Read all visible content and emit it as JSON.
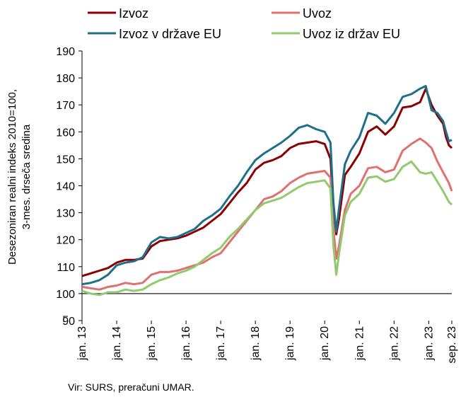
{
  "chart_data": {
    "type": "line",
    "ylabel_line1": "Desezoniran realni indeks 2010=100,",
    "ylabel_line2": "3-mes. drseča sredina",
    "ylim": [
      90,
      190
    ],
    "yticks": [
      90,
      100,
      110,
      120,
      130,
      140,
      150,
      160,
      170,
      180,
      190
    ],
    "reference_line": 100,
    "x_start": "2013-01",
    "x_end": "2023-09",
    "xtick_labels": [
      "jan. 13",
      "jan. 14",
      "jan. 15",
      "jan. 16",
      "jan. 17",
      "jan. 18",
      "jan. 19",
      "jan. 20",
      "jan. 21",
      "jan. 22",
      "jan. 23",
      "sep. 23"
    ],
    "legend_position": "top",
    "source": "Vir: SURS, preračuni UMAR.",
    "series": [
      {
        "name": "Izvoz",
        "color": "#8b0000",
        "points": [
          [
            "2013-01",
            106.5
          ],
          [
            "2013-04",
            107.5
          ],
          [
            "2013-07",
            108.5
          ],
          [
            "2013-10",
            109.5
          ],
          [
            "2014-01",
            111.5
          ],
          [
            "2014-04",
            112.5
          ],
          [
            "2014-07",
            112.5
          ],
          [
            "2014-10",
            113.0
          ],
          [
            "2015-01",
            117.5
          ],
          [
            "2015-04",
            119.5
          ],
          [
            "2015-07",
            120.0
          ],
          [
            "2015-10",
            120.5
          ],
          [
            "2016-01",
            121.5
          ],
          [
            "2016-04",
            123.0
          ],
          [
            "2016-07",
            124.5
          ],
          [
            "2016-10",
            127.0
          ],
          [
            "2017-01",
            129.5
          ],
          [
            "2017-04",
            133.5
          ],
          [
            "2017-07",
            137.5
          ],
          [
            "2017-10",
            141.0
          ],
          [
            "2018-01",
            146.0
          ],
          [
            "2018-04",
            148.5
          ],
          [
            "2018-07",
            149.5
          ],
          [
            "2018-10",
            151.0
          ],
          [
            "2019-01",
            154.0
          ],
          [
            "2019-04",
            155.5
          ],
          [
            "2019-07",
            156.0
          ],
          [
            "2019-10",
            156.5
          ],
          [
            "2020-01",
            155.5
          ],
          [
            "2020-03",
            150.0
          ],
          [
            "2020-04",
            132.0
          ],
          [
            "2020-05",
            122.0
          ],
          [
            "2020-06",
            128.0
          ],
          [
            "2020-08",
            144.0
          ],
          [
            "2020-10",
            147.0
          ],
          [
            "2021-01",
            152.0
          ],
          [
            "2021-04",
            160.0
          ],
          [
            "2021-07",
            162.0
          ],
          [
            "2021-10",
            159.0
          ],
          [
            "2022-01",
            162.0
          ],
          [
            "2022-04",
            169.0
          ],
          [
            "2022-07",
            169.5
          ],
          [
            "2022-10",
            171.0
          ],
          [
            "2022-12",
            176.0
          ],
          [
            "2023-02",
            170.0
          ],
          [
            "2023-04",
            166.0
          ],
          [
            "2023-06",
            163.0
          ],
          [
            "2023-07",
            158.0
          ],
          [
            "2023-08",
            155.0
          ],
          [
            "2023-09",
            154.0
          ]
        ]
      },
      {
        "name": "Uvoz",
        "color": "#e07070",
        "points": [
          [
            "2013-01",
            102.5
          ],
          [
            "2013-04",
            102.0
          ],
          [
            "2013-07",
            101.5
          ],
          [
            "2013-10",
            102.5
          ],
          [
            "2014-01",
            103.0
          ],
          [
            "2014-04",
            104.0
          ],
          [
            "2014-07",
            103.5
          ],
          [
            "2014-10",
            104.0
          ],
          [
            "2015-01",
            107.0
          ],
          [
            "2015-04",
            108.0
          ],
          [
            "2015-07",
            108.0
          ],
          [
            "2015-10",
            108.5
          ],
          [
            "2016-01",
            109.5
          ],
          [
            "2016-04",
            110.5
          ],
          [
            "2016-07",
            111.5
          ],
          [
            "2016-10",
            113.5
          ],
          [
            "2017-01",
            115.0
          ],
          [
            "2017-04",
            119.0
          ],
          [
            "2017-07",
            123.0
          ],
          [
            "2017-10",
            127.0
          ],
          [
            "2018-01",
            131.0
          ],
          [
            "2018-04",
            135.0
          ],
          [
            "2018-07",
            136.0
          ],
          [
            "2018-10",
            138.0
          ],
          [
            "2019-01",
            141.0
          ],
          [
            "2019-04",
            143.0
          ],
          [
            "2019-07",
            144.5
          ],
          [
            "2019-10",
            145.0
          ],
          [
            "2020-01",
            145.5
          ],
          [
            "2020-03",
            143.0
          ],
          [
            "2020-04",
            124.0
          ],
          [
            "2020-05",
            113.0
          ],
          [
            "2020-06",
            118.0
          ],
          [
            "2020-08",
            131.0
          ],
          [
            "2020-10",
            137.0
          ],
          [
            "2021-01",
            140.0
          ],
          [
            "2021-04",
            146.5
          ],
          [
            "2021-07",
            147.0
          ],
          [
            "2021-10",
            145.0
          ],
          [
            "2022-01",
            146.0
          ],
          [
            "2022-04",
            153.0
          ],
          [
            "2022-07",
            155.5
          ],
          [
            "2022-10",
            157.5
          ],
          [
            "2022-12",
            156.0
          ],
          [
            "2023-02",
            154.0
          ],
          [
            "2023-04",
            149.0
          ],
          [
            "2023-06",
            145.0
          ],
          [
            "2023-07",
            143.0
          ],
          [
            "2023-08",
            141.0
          ],
          [
            "2023-09",
            138.0
          ]
        ]
      },
      {
        "name": "Izvoz v države EU",
        "color": "#1f6f8b",
        "points": [
          [
            "2013-01",
            103.5
          ],
          [
            "2013-04",
            104.0
          ],
          [
            "2013-07",
            105.0
          ],
          [
            "2013-10",
            107.0
          ],
          [
            "2014-01",
            110.5
          ],
          [
            "2014-04",
            111.5
          ],
          [
            "2014-07",
            112.0
          ],
          [
            "2014-10",
            113.5
          ],
          [
            "2015-01",
            119.0
          ],
          [
            "2015-04",
            121.0
          ],
          [
            "2015-07",
            120.5
          ],
          [
            "2015-10",
            121.0
          ],
          [
            "2016-01",
            122.5
          ],
          [
            "2016-04",
            124.0
          ],
          [
            "2016-07",
            127.0
          ],
          [
            "2016-10",
            129.0
          ],
          [
            "2017-01",
            131.5
          ],
          [
            "2017-04",
            136.0
          ],
          [
            "2017-07",
            140.0
          ],
          [
            "2017-10",
            145.0
          ],
          [
            "2018-01",
            149.5
          ],
          [
            "2018-04",
            152.0
          ],
          [
            "2018-07",
            154.0
          ],
          [
            "2018-10",
            156.0
          ],
          [
            "2019-01",
            158.5
          ],
          [
            "2019-04",
            161.5
          ],
          [
            "2019-07",
            162.5
          ],
          [
            "2019-10",
            161.0
          ],
          [
            "2020-01",
            160.0
          ],
          [
            "2020-03",
            156.0
          ],
          [
            "2020-04",
            134.0
          ],
          [
            "2020-05",
            123.0
          ],
          [
            "2020-06",
            132.0
          ],
          [
            "2020-08",
            148.0
          ],
          [
            "2020-10",
            153.0
          ],
          [
            "2021-01",
            158.0
          ],
          [
            "2021-04",
            167.0
          ],
          [
            "2021-07",
            166.0
          ],
          [
            "2021-10",
            163.0
          ],
          [
            "2022-01",
            167.0
          ],
          [
            "2022-04",
            173.0
          ],
          [
            "2022-07",
            174.0
          ],
          [
            "2022-10",
            176.0
          ],
          [
            "2022-12",
            177.0
          ],
          [
            "2023-02",
            168.0
          ],
          [
            "2023-04",
            167.0
          ],
          [
            "2023-06",
            164.0
          ],
          [
            "2023-07",
            160.0
          ],
          [
            "2023-08",
            156.5
          ],
          [
            "2023-09",
            157.0
          ]
        ]
      },
      {
        "name": "Uvoz iz držav EU",
        "color": "#92c86e",
        "points": [
          [
            "2013-01",
            101.0
          ],
          [
            "2013-04",
            100.0
          ],
          [
            "2013-07",
            99.5
          ],
          [
            "2013-10",
            100.5
          ],
          [
            "2014-01",
            100.5
          ],
          [
            "2014-04",
            101.5
          ],
          [
            "2014-07",
            101.0
          ],
          [
            "2014-10",
            101.5
          ],
          [
            "2015-01",
            103.5
          ],
          [
            "2015-04",
            105.0
          ],
          [
            "2015-07",
            106.0
          ],
          [
            "2015-10",
            107.5
          ],
          [
            "2016-01",
            108.5
          ],
          [
            "2016-04",
            110.0
          ],
          [
            "2016-07",
            112.5
          ],
          [
            "2016-10",
            115.0
          ],
          [
            "2017-01",
            117.0
          ],
          [
            "2017-04",
            121.0
          ],
          [
            "2017-07",
            124.0
          ],
          [
            "2017-10",
            127.5
          ],
          [
            "2018-01",
            131.0
          ],
          [
            "2018-04",
            133.5
          ],
          [
            "2018-07",
            134.5
          ],
          [
            "2018-10",
            135.5
          ],
          [
            "2019-01",
            137.5
          ],
          [
            "2019-04",
            139.5
          ],
          [
            "2019-07",
            141.0
          ],
          [
            "2019-10",
            141.5
          ],
          [
            "2020-01",
            142.0
          ],
          [
            "2020-03",
            139.0
          ],
          [
            "2020-04",
            118.0
          ],
          [
            "2020-05",
            107.0
          ],
          [
            "2020-06",
            115.0
          ],
          [
            "2020-08",
            129.0
          ],
          [
            "2020-10",
            134.0
          ],
          [
            "2021-01",
            137.0
          ],
          [
            "2021-04",
            143.0
          ],
          [
            "2021-07",
            143.5
          ],
          [
            "2021-10",
            141.5
          ],
          [
            "2022-01",
            142.5
          ],
          [
            "2022-04",
            147.0
          ],
          [
            "2022-07",
            149.0
          ],
          [
            "2022-10",
            145.0
          ],
          [
            "2022-12",
            144.5
          ],
          [
            "2023-02",
            145.0
          ],
          [
            "2023-04",
            141.5
          ],
          [
            "2023-06",
            138.0
          ],
          [
            "2023-07",
            136.0
          ],
          [
            "2023-08",
            134.0
          ],
          [
            "2023-09",
            133.0
          ]
        ]
      }
    ]
  }
}
